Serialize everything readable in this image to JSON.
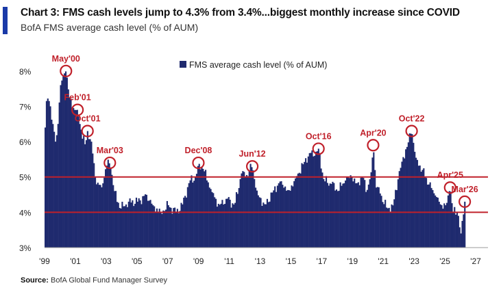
{
  "header": {
    "title": "Chart 3: FMS cash levels jump to 4.3% from 3.4%...biggest monthly increase since COVID",
    "subtitle": "BofA FMS average cash level (% of AUM)"
  },
  "source": {
    "label": "Source:",
    "text": "BofA Global Fund Manager Survey"
  },
  "colors": {
    "bars": "#1f2a6e",
    "reference_lines": "#c0202a",
    "annotations": "#c0202a",
    "accent": "#1a3aa8"
  },
  "chart_data": {
    "type": "bar",
    "title": "Chart 3: FMS cash levels jump to 4.3% from 3.4%...biggest monthly increase since COVID",
    "subtitle": "BofA FMS average cash level (% of AUM)",
    "legend": [
      "FMS average cash level (% of AUM)"
    ],
    "legend_position": "top-center",
    "xlabel": "",
    "ylabel": "",
    "ylim": [
      3,
      8.5
    ],
    "xlim": [
      1999,
      2027.8
    ],
    "y_ticks": [
      3,
      4,
      5,
      6,
      7,
      8
    ],
    "y_tick_labels": [
      "3%",
      "4%",
      "5%",
      "6%",
      "7%",
      "8%"
    ],
    "x_ticks": [
      1999,
      2001,
      2003,
      2005,
      2007,
      2009,
      2011,
      2013,
      2015,
      2017,
      2019,
      2021,
      2023,
      2025,
      2027
    ],
    "x_tick_labels": [
      "'99",
      "'01",
      "'03",
      "'05",
      "'07",
      "'09",
      "'11",
      "'13",
      "'15",
      "'17",
      "'19",
      "'21",
      "'23",
      "'25",
      "'27"
    ],
    "reference_lines": [
      4.0,
      5.0
    ],
    "grid": false,
    "keypoints": [
      [
        1999.0,
        6.4
      ],
      [
        1999.1,
        7.3
      ],
      [
        1999.3,
        7.1
      ],
      [
        1999.5,
        6.5
      ],
      [
        1999.7,
        5.9
      ],
      [
        2000.0,
        7.6
      ],
      [
        2000.2,
        7.9
      ],
      [
        2000.35,
        8.0
      ],
      [
        2000.6,
        7.2
      ],
      [
        2000.9,
        6.9
      ],
      [
        2001.1,
        6.9
      ],
      [
        2001.35,
        6.3
      ],
      [
        2001.6,
        5.9
      ],
      [
        2001.75,
        6.3
      ],
      [
        2002.0,
        6.0
      ],
      [
        2002.3,
        4.8
      ],
      [
        2002.7,
        4.7
      ],
      [
        2002.95,
        5.3
      ],
      [
        2003.2,
        5.4
      ],
      [
        2003.5,
        4.6
      ],
      [
        2003.9,
        4.1
      ],
      [
        2004.4,
        4.3
      ],
      [
        2005.0,
        4.3
      ],
      [
        2005.6,
        4.5
      ],
      [
        2006.0,
        4.2
      ],
      [
        2006.5,
        4.0
      ],
      [
        2007.0,
        4.2
      ],
      [
        2007.5,
        4.0
      ],
      [
        2007.9,
        4.2
      ],
      [
        2008.4,
        4.9
      ],
      [
        2008.8,
        5.0
      ],
      [
        2008.95,
        5.4
      ],
      [
        2009.3,
        5.2
      ],
      [
        2009.8,
        4.6
      ],
      [
        2010.3,
        4.2
      ],
      [
        2010.8,
        4.4
      ],
      [
        2011.3,
        4.2
      ],
      [
        2011.8,
        5.2
      ],
      [
        2012.0,
        5.0
      ],
      [
        2012.45,
        5.3
      ],
      [
        2012.8,
        4.5
      ],
      [
        2013.3,
        4.2
      ],
      [
        2013.8,
        4.6
      ],
      [
        2014.3,
        4.9
      ],
      [
        2014.8,
        4.6
      ],
      [
        2015.3,
        5.0
      ],
      [
        2015.8,
        5.4
      ],
      [
        2016.2,
        5.7
      ],
      [
        2016.5,
        5.6
      ],
      [
        2016.75,
        5.8
      ],
      [
        2017.1,
        4.9
      ],
      [
        2017.6,
        4.8
      ],
      [
        2018.0,
        4.6
      ],
      [
        2018.5,
        4.9
      ],
      [
        2018.9,
        5.0
      ],
      [
        2019.2,
        4.8
      ],
      [
        2019.6,
        5.0
      ],
      [
        2019.9,
        4.6
      ],
      [
        2020.2,
        5.2
      ],
      [
        2020.3,
        5.9
      ],
      [
        2020.5,
        4.7
      ],
      [
        2020.8,
        4.5
      ],
      [
        2021.2,
        4.1
      ],
      [
        2021.6,
        4.2
      ],
      [
        2021.9,
        4.9
      ],
      [
        2022.2,
        5.5
      ],
      [
        2022.6,
        6.0
      ],
      [
        2022.8,
        6.3
      ],
      [
        2023.1,
        5.5
      ],
      [
        2023.5,
        5.2
      ],
      [
        2023.9,
        4.8
      ],
      [
        2024.3,
        4.5
      ],
      [
        2024.7,
        4.2
      ],
      [
        2025.05,
        4.2
      ],
      [
        2025.3,
        4.7
      ],
      [
        2025.5,
        4.0
      ],
      [
        2025.8,
        4.0
      ],
      [
        2026.0,
        3.4
      ],
      [
        2026.25,
        4.3
      ]
    ],
    "annotations": [
      {
        "label": "May'00",
        "x": 2000.35,
        "y": 8.0
      },
      {
        "label": "Feb'01",
        "x": 2001.1,
        "y": 6.9
      },
      {
        "label": "Oct'01",
        "x": 2001.75,
        "y": 6.3
      },
      {
        "label": "Mar'03",
        "x": 2003.2,
        "y": 5.4
      },
      {
        "label": "Dec'08",
        "x": 2008.95,
        "y": 5.4
      },
      {
        "label": "Jun'12",
        "x": 2012.45,
        "y": 5.3
      },
      {
        "label": "Oct'16",
        "x": 2016.75,
        "y": 5.8
      },
      {
        "label": "Apr'20",
        "x": 2020.3,
        "y": 5.9
      },
      {
        "label": "Oct'22",
        "x": 2022.8,
        "y": 6.3
      },
      {
        "label": "Apr'25",
        "x": 2025.3,
        "y": 4.7
      },
      {
        "label": "Mar'26",
        "x": 2026.25,
        "y": 4.3
      }
    ]
  }
}
